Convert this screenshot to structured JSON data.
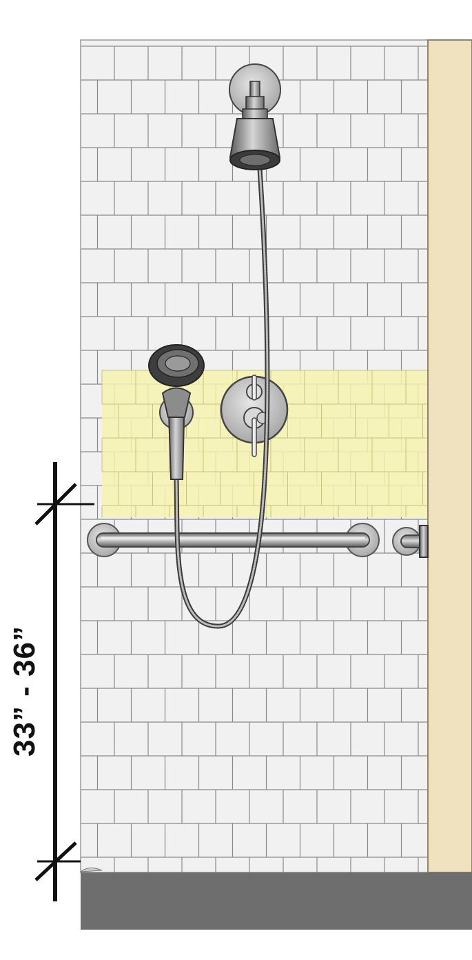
{
  "dimension": {
    "label": "33” - 36”"
  },
  "colors": {
    "tile": "#f1f1f1",
    "grout": "#8a8a8a",
    "highlight_zone": "#f7f3b0",
    "wall_edge": "#f1e2bf",
    "floor": "#6e6e6e",
    "metal_dark": "#4a4a4a",
    "metal_light": "#c9c9c9",
    "dimension_line": "#111111"
  },
  "icons": {
    "fixed_showerhead": "showerhead-icon",
    "handheld_shower": "handheld-shower-icon",
    "valve": "valve-icon",
    "grab_bar": "grab-bar-icon",
    "hose": "hose-icon"
  }
}
